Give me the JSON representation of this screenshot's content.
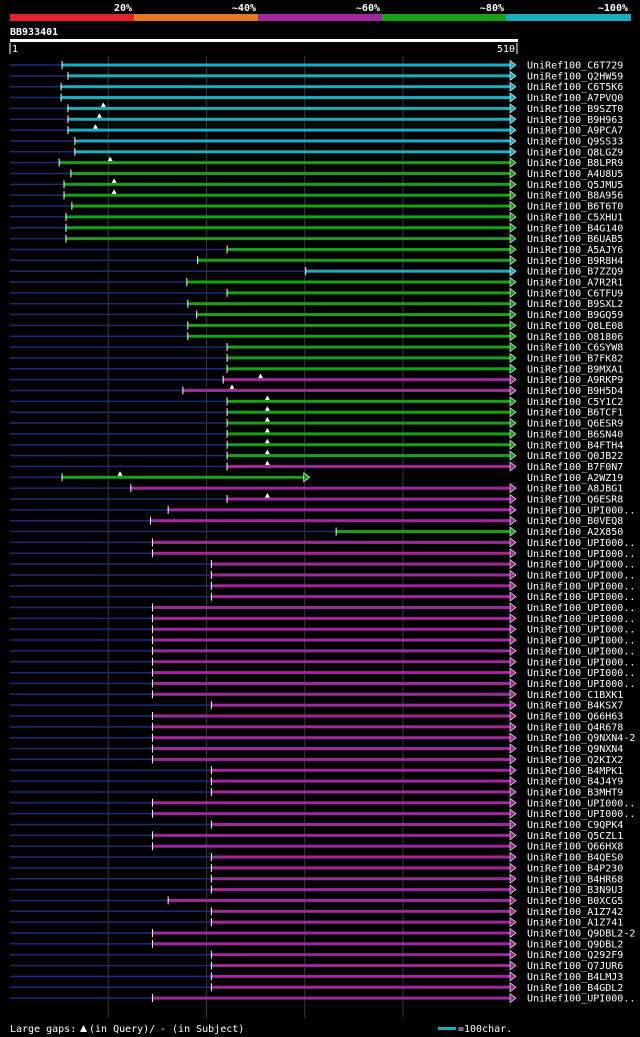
{
  "chart_data": {
    "type": "alignment",
    "query_id": "BB933401",
    "query_length": 510,
    "scale_start_label": "1",
    "scale_end_label": "510",
    "identity_legend": [
      {
        "label": "20%",
        "color": "#e8202a"
      },
      {
        "label": "~40%",
        "color": "#e87820"
      },
      {
        "label": "~60%",
        "color": "#a0289c"
      },
      {
        "label": "~80%",
        "color": "#18a018"
      },
      {
        "label": "~100%",
        "color": "#18b0c0"
      }
    ],
    "footer_gap_text": "Large gaps:",
    "footer_gap_query": "(in Query)/",
    "footer_gap_subject": "- (in Subject)",
    "footer_scale_text": "=100char.",
    "hits": [
      {
        "name": "UniRef100_C6T729",
        "start": 54,
        "end": 510,
        "identity": 100,
        "gaps": []
      },
      {
        "name": "UniRef100_Q2HW59",
        "start": 60,
        "end": 510,
        "identity": 100,
        "gaps": []
      },
      {
        "name": "UniRef100_C6T5K6",
        "start": 53,
        "end": 510,
        "identity": 100,
        "gaps": []
      },
      {
        "name": "UniRef100_A7PVQ0",
        "start": 53,
        "end": 510,
        "identity": 100,
        "gaps": []
      },
      {
        "name": "UniRef100_B9SZT0",
        "start": 60,
        "end": 510,
        "identity": 100,
        "gaps": [
          96
        ]
      },
      {
        "name": "UniRef100_B9H963",
        "start": 60,
        "end": 510,
        "identity": 100,
        "gaps": [
          92
        ]
      },
      {
        "name": "UniRef100_A9PCA7",
        "start": 60,
        "end": 510,
        "identity": 100,
        "gaps": [
          88
        ]
      },
      {
        "name": "UniRef100_Q9SS33",
        "start": 67,
        "end": 510,
        "identity": 100,
        "gaps": []
      },
      {
        "name": "UniRef100_Q8LGZ9",
        "start": 67,
        "end": 510,
        "identity": 100,
        "gaps": []
      },
      {
        "name": "UniRef100_B8LPR9",
        "start": 51,
        "end": 510,
        "identity": 80,
        "gaps": [
          103
        ]
      },
      {
        "name": "UniRef100_A4U8U5",
        "start": 63,
        "end": 510,
        "identity": 80,
        "gaps": []
      },
      {
        "name": "UniRef100_Q5JMU5",
        "start": 56,
        "end": 510,
        "identity": 80,
        "gaps": [
          107
        ]
      },
      {
        "name": "UniRef100_B8A956",
        "start": 56,
        "end": 510,
        "identity": 80,
        "gaps": [
          107
        ]
      },
      {
        "name": "UniRef100_B6T6T0",
        "start": 64,
        "end": 510,
        "identity": 80,
        "gaps": []
      },
      {
        "name": "UniRef100_C5XHU1",
        "start": 58,
        "end": 510,
        "identity": 80,
        "gaps": []
      },
      {
        "name": "UniRef100_B4G140",
        "start": 58,
        "end": 510,
        "identity": 80,
        "gaps": []
      },
      {
        "name": "UniRef100_B6UAB5",
        "start": 58,
        "end": 510,
        "identity": 80,
        "gaps": []
      },
      {
        "name": "UniRef100_A5AJY6",
        "start": 222,
        "end": 510,
        "identity": 80,
        "gaps": []
      },
      {
        "name": "UniRef100_B9R8H4",
        "start": 192,
        "end": 510,
        "identity": 80,
        "gaps": []
      },
      {
        "name": "UniRef100_B7ZZQ9",
        "start": 302,
        "end": 510,
        "identity": 100,
        "gaps": []
      },
      {
        "name": "UniRef100_A7R2R1",
        "start": 181,
        "end": 510,
        "identity": 80,
        "gaps": []
      },
      {
        "name": "UniRef100_C6TFU9",
        "start": 222,
        "end": 510,
        "identity": 80,
        "gaps": []
      },
      {
        "name": "UniRef100_B9SXL2",
        "start": 182,
        "end": 510,
        "identity": 80,
        "gaps": []
      },
      {
        "name": "UniRef100_B9GQ59",
        "start": 191,
        "end": 510,
        "identity": 80,
        "gaps": []
      },
      {
        "name": "UniRef100_Q8LE08",
        "start": 182,
        "end": 510,
        "identity": 80,
        "gaps": []
      },
      {
        "name": "UniRef100_O81806",
        "start": 182,
        "end": 510,
        "identity": 80,
        "gaps": []
      },
      {
        "name": "UniRef100_C6SYW8",
        "start": 222,
        "end": 510,
        "identity": 80,
        "gaps": []
      },
      {
        "name": "UniRef100_B7FK82",
        "start": 222,
        "end": 510,
        "identity": 80,
        "gaps": []
      },
      {
        "name": "UniRef100_B9MXA1",
        "start": 222,
        "end": 510,
        "identity": 80,
        "gaps": []
      },
      {
        "name": "UniRef100_A9RKP9",
        "start": 218,
        "end": 510,
        "identity": 60,
        "gaps": [
          256
        ]
      },
      {
        "name": "UniRef100_B9H5D4",
        "start": 177,
        "end": 510,
        "identity": 60,
        "gaps": [
          227
        ]
      },
      {
        "name": "UniRef100_C5Y1C2",
        "start": 222,
        "end": 510,
        "identity": 80,
        "gaps": [
          263
        ]
      },
      {
        "name": "UniRef100_B6TCF1",
        "start": 222,
        "end": 510,
        "identity": 80,
        "gaps": [
          263
        ]
      },
      {
        "name": "UniRef100_Q6ESR9",
        "start": 222,
        "end": 510,
        "identity": 80,
        "gaps": [
          263
        ]
      },
      {
        "name": "UniRef100_B6SN40",
        "start": 222,
        "end": 510,
        "identity": 80,
        "gaps": [
          263
        ]
      },
      {
        "name": "UniRef100_B4FTH4",
        "start": 222,
        "end": 510,
        "identity": 80,
        "gaps": [
          263
        ]
      },
      {
        "name": "UniRef100_Q0JB22",
        "start": 222,
        "end": 510,
        "identity": 80,
        "gaps": [
          263
        ]
      },
      {
        "name": "UniRef100_B7F0N7",
        "start": 222,
        "end": 510,
        "identity": 60,
        "gaps": [
          263
        ]
      },
      {
        "name": "UniRef100_A2WZ19",
        "start": 54,
        "end": 300,
        "identity": 80,
        "gaps": [
          113
        ]
      },
      {
        "name": "UniRef100_A8JBG1",
        "start": 124,
        "end": 510,
        "identity": 60,
        "gaps": []
      },
      {
        "name": "UniRef100_Q6ESR8",
        "start": 222,
        "end": 510,
        "identity": 60,
        "gaps": [
          263
        ]
      },
      {
        "name": "UniRef100_UPI000..",
        "start": 162,
        "end": 510,
        "identity": 60,
        "gaps": []
      },
      {
        "name": "UniRef100_B0VEQ8",
        "start": 144,
        "end": 510,
        "identity": 60,
        "gaps": []
      },
      {
        "name": "UniRef100_A2X850",
        "start": 333,
        "end": 510,
        "identity": 80,
        "gaps": []
      },
      {
        "name": "UniRef100_UPI000..",
        "start": 146,
        "end": 510,
        "identity": 60,
        "gaps": []
      },
      {
        "name": "UniRef100_UPI000..",
        "start": 146,
        "end": 510,
        "identity": 60,
        "gaps": []
      },
      {
        "name": "UniRef100_UPI000..",
        "start": 206,
        "end": 510,
        "identity": 60,
        "gaps": []
      },
      {
        "name": "UniRef100_UPI000..",
        "start": 206,
        "end": 510,
        "identity": 60,
        "gaps": []
      },
      {
        "name": "UniRef100_UPI000..",
        "start": 206,
        "end": 510,
        "identity": 60,
        "gaps": []
      },
      {
        "name": "UniRef100_UPI000..",
        "start": 206,
        "end": 510,
        "identity": 60,
        "gaps": []
      },
      {
        "name": "UniRef100_UPI000..",
        "start": 146,
        "end": 510,
        "identity": 60,
        "gaps": []
      },
      {
        "name": "UniRef100_UPI000..",
        "start": 146,
        "end": 510,
        "identity": 60,
        "gaps": []
      },
      {
        "name": "UniRef100_UPI000..",
        "start": 146,
        "end": 510,
        "identity": 60,
        "gaps": []
      },
      {
        "name": "UniRef100_UPI000..",
        "start": 146,
        "end": 510,
        "identity": 60,
        "gaps": []
      },
      {
        "name": "UniRef100_UPI000..",
        "start": 146,
        "end": 510,
        "identity": 60,
        "gaps": []
      },
      {
        "name": "UniRef100_UPI000..",
        "start": 146,
        "end": 510,
        "identity": 60,
        "gaps": []
      },
      {
        "name": "UniRef100_UPI000..",
        "start": 146,
        "end": 510,
        "identity": 60,
        "gaps": []
      },
      {
        "name": "UniRef100_UPI000..",
        "start": 146,
        "end": 510,
        "identity": 60,
        "gaps": []
      },
      {
        "name": "UniRef100_C1BXK1",
        "start": 146,
        "end": 510,
        "identity": 60,
        "gaps": []
      },
      {
        "name": "UniRef100_B4KSX7",
        "start": 206,
        "end": 510,
        "identity": 60,
        "gaps": []
      },
      {
        "name": "UniRef100_Q66H63",
        "start": 146,
        "end": 510,
        "identity": 60,
        "gaps": []
      },
      {
        "name": "UniRef100_Q4R678",
        "start": 146,
        "end": 510,
        "identity": 60,
        "gaps": []
      },
      {
        "name": "UniRef100_Q9NXN4-2",
        "start": 146,
        "end": 510,
        "identity": 60,
        "gaps": []
      },
      {
        "name": "UniRef100_Q9NXN4",
        "start": 146,
        "end": 510,
        "identity": 60,
        "gaps": []
      },
      {
        "name": "UniRef100_Q2KIX2",
        "start": 146,
        "end": 510,
        "identity": 60,
        "gaps": []
      },
      {
        "name": "UniRef100_B4MPK1",
        "start": 206,
        "end": 510,
        "identity": 60,
        "gaps": []
      },
      {
        "name": "UniRef100_B4J4Y9",
        "start": 206,
        "end": 510,
        "identity": 60,
        "gaps": []
      },
      {
        "name": "UniRef100_B3MHT9",
        "start": 206,
        "end": 510,
        "identity": 60,
        "gaps": []
      },
      {
        "name": "UniRef100_UPI000..",
        "start": 146,
        "end": 510,
        "identity": 60,
        "gaps": []
      },
      {
        "name": "UniRef100_UPI000..",
        "start": 146,
        "end": 510,
        "identity": 60,
        "gaps": []
      },
      {
        "name": "UniRef100_C9QPK4",
        "start": 206,
        "end": 510,
        "identity": 60,
        "gaps": []
      },
      {
        "name": "UniRef100_Q5CZL1",
        "start": 146,
        "end": 510,
        "identity": 60,
        "gaps": []
      },
      {
        "name": "UniRef100_Q66HX8",
        "start": 146,
        "end": 510,
        "identity": 60,
        "gaps": []
      },
      {
        "name": "UniRef100_B4QES0",
        "start": 206,
        "end": 510,
        "identity": 60,
        "gaps": []
      },
      {
        "name": "UniRef100_B4P230",
        "start": 206,
        "end": 510,
        "identity": 60,
        "gaps": []
      },
      {
        "name": "UniRef100_B4HR68",
        "start": 206,
        "end": 510,
        "identity": 60,
        "gaps": []
      },
      {
        "name": "UniRef100_B3N9U3",
        "start": 206,
        "end": 510,
        "identity": 60,
        "gaps": []
      },
      {
        "name": "UniRef100_B0XCG5",
        "start": 162,
        "end": 510,
        "identity": 60,
        "gaps": []
      },
      {
        "name": "UniRef100_A1Z742",
        "start": 206,
        "end": 510,
        "identity": 60,
        "gaps": []
      },
      {
        "name": "UniRef100_A1Z741",
        "start": 206,
        "end": 510,
        "identity": 60,
        "gaps": []
      },
      {
        "name": "UniRef100_Q9DBL2-2",
        "start": 146,
        "end": 510,
        "identity": 60,
        "gaps": []
      },
      {
        "name": "UniRef100_Q9DBL2",
        "start": 146,
        "end": 510,
        "identity": 60,
        "gaps": []
      },
      {
        "name": "UniRef100_Q292F9",
        "start": 206,
        "end": 510,
        "identity": 60,
        "gaps": []
      },
      {
        "name": "UniRef100_Q7JUR6",
        "start": 206,
        "end": 510,
        "identity": 60,
        "gaps": []
      },
      {
        "name": "UniRef100_B4LMJ3",
        "start": 206,
        "end": 510,
        "identity": 60,
        "gaps": []
      },
      {
        "name": "UniRef100_B4GDL2",
        "start": 206,
        "end": 510,
        "identity": 60,
        "gaps": []
      },
      {
        "name": "UniRef100_UPI000..",
        "start": 146,
        "end": 510,
        "identity": 60,
        "gaps": []
      }
    ]
  }
}
